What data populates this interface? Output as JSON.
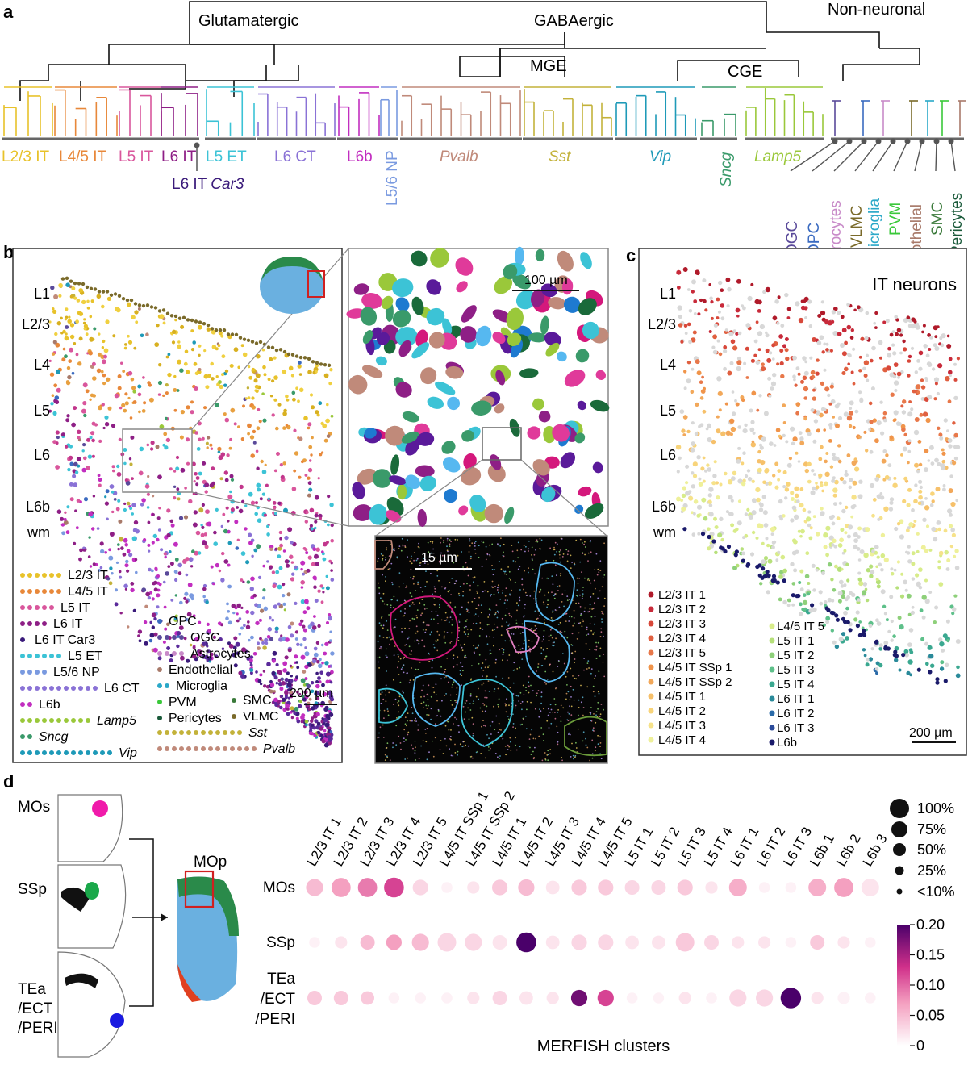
{
  "panels": {
    "a": "a",
    "b": "b",
    "c": "c",
    "d": "d"
  },
  "tree": {
    "groups": [
      {
        "label": "Glutamatergic"
      },
      {
        "label": "GABAergic"
      },
      {
        "label": "Non-neuronal"
      },
      {
        "label": "MGE"
      },
      {
        "label": "CGE"
      }
    ],
    "leaf_groups": [
      {
        "label": "L2/3 IT",
        "color": "#e8c22a",
        "italic": false
      },
      {
        "label": "L4/5 IT",
        "color": "#e8883a",
        "italic": false
      },
      {
        "label": "L5 IT",
        "color": "#d9569c",
        "italic": false
      },
      {
        "label": "L6 IT",
        "color": "#8e1f86",
        "italic": false
      },
      {
        "label": "L5 ET",
        "color": "#3cc3d6",
        "italic": false
      },
      {
        "label": "L6 CT",
        "color": "#8a72d6",
        "italic": false
      },
      {
        "label": "L6b",
        "color": "#c22ec0",
        "italic": false
      },
      {
        "label": "L5/6 NP",
        "color": "#7a9ae0",
        "italic": false
      },
      {
        "label": "Pvalb",
        "color": "#c08a7a",
        "italic": true
      },
      {
        "label": "Sst",
        "color": "#c3b23a",
        "italic": true
      },
      {
        "label": "Vip",
        "color": "#1e9ab8",
        "italic": true
      },
      {
        "label": "Sncg",
        "color": "#3a9a6a",
        "italic": true
      },
      {
        "label": "Lamp5",
        "color": "#9ac83a",
        "italic": true
      }
    ],
    "car3": {
      "prefix": "L6 IT ",
      "italic": "Car3",
      "color": "#3a1a7a"
    },
    "nonneuronal": [
      {
        "label": "OGC",
        "color": "#5a4a9a"
      },
      {
        "label": "OPC",
        "color": "#3a6ac0"
      },
      {
        "label": "Astrocytes",
        "color": "#c88ac8"
      },
      {
        "label": "VLMC",
        "color": "#7a6a2a"
      },
      {
        "label": "Microglia",
        "color": "#2aa8c8"
      },
      {
        "label": "PVM",
        "color": "#3ac83a"
      },
      {
        "label": "Endothelial",
        "color": "#a87a6a"
      },
      {
        "label": "SMC",
        "color": "#3a7a3a"
      },
      {
        "label": "Pericytes",
        "color": "#1a5a3a"
      }
    ]
  },
  "panel_b": {
    "layers": [
      "L1",
      "L2/3",
      "L4",
      "L5",
      "L6",
      "L6b",
      "wm"
    ],
    "scale": "200 µm",
    "zoom_scale": "100 µm",
    "zoom2_scale": "15 µm",
    "legend_left": [
      {
        "label": "L2/3 IT",
        "color": "#e8c22a",
        "italic": false
      },
      {
        "label": "L4/5 IT",
        "color": "#e8883a",
        "italic": false
      },
      {
        "label": "L5 IT",
        "color": "#d9569c",
        "italic": false
      },
      {
        "label": "L6 IT",
        "color": "#8e1f86",
        "italic": false
      },
      {
        "label": "L6 IT Car3",
        "color": "#3a1a7a",
        "italic": false
      },
      {
        "label": "L5 ET",
        "color": "#3cc3d6",
        "italic": false
      },
      {
        "label": "L5/6 NP",
        "color": "#7a9ae0",
        "italic": false
      },
      {
        "label": "L6 CT",
        "color": "#8a72d6",
        "italic": false
      },
      {
        "label": "L6b",
        "color": "#c22ec0",
        "italic": false
      },
      {
        "label": "Lamp5",
        "color": "#9ac83a",
        "italic": true
      },
      {
        "label": "Sncg",
        "color": "#3a9a6a",
        "italic": true
      },
      {
        "label": "Vip",
        "color": "#1e9ab8",
        "italic": true
      }
    ],
    "legend_right": [
      {
        "label": "OPC",
        "color": "#3a6ac0",
        "italic": false
      },
      {
        "label": "OGC",
        "color": "#5a4a9a",
        "italic": false
      },
      {
        "label": "Astrocytes",
        "color": "#c88ac8",
        "italic": false
      },
      {
        "label": "Endothelial",
        "color": "#a87a6a",
        "italic": false
      },
      {
        "label": "Microglia",
        "color": "#2aa8c8",
        "italic": false
      },
      {
        "label": "PVM",
        "color": "#3ac83a",
        "italic": false
      },
      {
        "label": "Pericytes",
        "color": "#1a5a3a",
        "italic": false
      },
      {
        "label": "SMC",
        "color": "#3a7a3a",
        "italic": false
      },
      {
        "label": "VLMC",
        "color": "#7a6a2a",
        "italic": false
      },
      {
        "label": "Sst",
        "color": "#c3b23a",
        "italic": true
      },
      {
        "label": "Pvalb",
        "color": "#c08a7a",
        "italic": true
      }
    ]
  },
  "panel_c": {
    "title": "IT neurons",
    "layers": [
      "L1",
      "L2/3",
      "L4",
      "L5",
      "L6",
      "L6b",
      "wm"
    ],
    "scale": "200 µm",
    "legend_col1": [
      {
        "label": "L2/3 IT 1",
        "color": "#b01a2a"
      },
      {
        "label": "L2/3 IT 2",
        "color": "#c82a3a"
      },
      {
        "label": "L2/3 IT 3",
        "color": "#d8483a"
      },
      {
        "label": "L2/3 IT 4",
        "color": "#e06040"
      },
      {
        "label": "L2/3 IT 5",
        "color": "#e8784a"
      },
      {
        "label": "L4/5 IT SSp 1",
        "color": "#f0944a"
      },
      {
        "label": "L4/5 IT SSp 2",
        "color": "#f2a85a"
      },
      {
        "label": "L4/5 IT 1",
        "color": "#f6c06a"
      },
      {
        "label": "L4/5 IT 2",
        "color": "#f8d47a"
      },
      {
        "label": "L4/5 IT 3",
        "color": "#f6e28a"
      },
      {
        "label": "L4/5 IT 4",
        "color": "#eef09a"
      }
    ],
    "legend_col2": [
      {
        "label": "L4/5 IT 5",
        "color": "#d8ec8a"
      },
      {
        "label": "L5 IT 1",
        "color": "#b6e07a"
      },
      {
        "label": "L5 IT 2",
        "color": "#8ed07a"
      },
      {
        "label": "L5 IT 3",
        "color": "#5ec08a"
      },
      {
        "label": "L5 IT 4",
        "color": "#3aa890"
      },
      {
        "label": "L6 IT 1",
        "color": "#2a8a9a"
      },
      {
        "label": "L6 IT 2",
        "color": "#2a6aa8"
      },
      {
        "label": "L6 IT 3",
        "color": "#2a4a9a"
      },
      {
        "label": "L6b",
        "color": "#1a1a6a"
      }
    ]
  },
  "panel_d": {
    "regions_left": [
      {
        "label": "MOs",
        "color": "#f01aaa"
      },
      {
        "label": "SSp",
        "color": "#1aa84a"
      },
      {
        "label": "TEa\n/ECT\n/PERI",
        "color": "#1a1ae0"
      }
    ],
    "mop_label": "MOp",
    "xlabel": "MERFISH clusters",
    "size_legend": [
      "100%",
      "75%",
      "50%",
      "25%",
      "<10%"
    ],
    "color_ticks": [
      "0.20",
      "0.15",
      "0.10",
      "0.05",
      "0"
    ]
  },
  "chart_data": {
    "type": "bubble",
    "xlabel": "MERFISH clusters",
    "categories": [
      "L2/3 IT 1",
      "L2/3 IT 2",
      "L2/3 IT 3",
      "L2/3 IT 4",
      "L2/3 IT 5",
      "L4/5 IT SSp 1",
      "L4/5 IT SSp 2",
      "L4/5 IT 1",
      "L4/5 IT 2",
      "L4/5 IT 3",
      "L4/5 IT 4",
      "L4/5 IT 5",
      "L5 IT 1",
      "L5 IT 2",
      "L5 IT 3",
      "L5 IT 4",
      "L6 IT 1",
      "L6 IT 2",
      "L6 IT 3",
      "L6b 1",
      "L6b 2",
      "L6b 3"
    ],
    "rows": [
      "MOs",
      "SSp",
      "TEa\n/ECT\n/PERI"
    ],
    "size_percent": [
      [
        40,
        55,
        55,
        60,
        30,
        10,
        15,
        30,
        35,
        20,
        30,
        30,
        25,
        25,
        30,
        15,
        45,
        10,
        10,
        45,
        55,
        45
      ],
      [
        10,
        15,
        25,
        30,
        40,
        50,
        40,
        25,
        60,
        20,
        30,
        30,
        20,
        20,
        50,
        25,
        15,
        15,
        10,
        25,
        15,
        10
      ],
      [
        25,
        25,
        20,
        10,
        10,
        10,
        15,
        25,
        20,
        15,
        35,
        35,
        10,
        10,
        15,
        10,
        40,
        40,
        65,
        15,
        15,
        10
      ]
    ],
    "color_value": [
      [
        0.05,
        0.07,
        0.09,
        0.12,
        0.03,
        0.01,
        0.02,
        0.04,
        0.05,
        0.02,
        0.04,
        0.04,
        0.03,
        0.03,
        0.04,
        0.02,
        0.06,
        0.01,
        0.01,
        0.06,
        0.07,
        0.02
      ],
      [
        0.01,
        0.02,
        0.05,
        0.07,
        0.05,
        0.03,
        0.03,
        0.02,
        0.2,
        0.02,
        0.03,
        0.03,
        0.02,
        0.02,
        0.04,
        0.03,
        0.02,
        0.02,
        0.01,
        0.04,
        0.02,
        0.01
      ],
      [
        0.04,
        0.04,
        0.04,
        0.01,
        0.01,
        0.01,
        0.02,
        0.03,
        0.02,
        0.02,
        0.18,
        0.12,
        0.01,
        0.01,
        0.02,
        0.01,
        0.03,
        0.03,
        0.2,
        0.02,
        0.01,
        0.01
      ]
    ],
    "size_legend": [
      "100%",
      "75%",
      "50%",
      "25%",
      "<10%"
    ],
    "colorbar": {
      "min": 0,
      "max": 0.2,
      "ticks": [
        "0.20",
        "0.15",
        "0.10",
        "0.05",
        "0"
      ]
    }
  }
}
